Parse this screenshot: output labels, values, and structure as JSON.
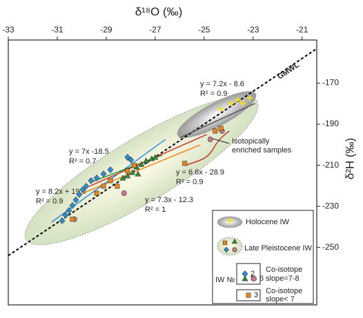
{
  "chart_data": {
    "type": "scatter",
    "x_label": "δ¹⁸O (‰)",
    "y_label": "δ²H (‰)",
    "xlim": [
      -33,
      -20.4
    ],
    "ylim": [
      -278,
      -149
    ],
    "xticks": [
      -33,
      -31,
      -29,
      -27,
      -25,
      -23,
      -21
    ],
    "yticks": [
      -170,
      -190,
      -210,
      -230,
      -250
    ],
    "series": [
      {
        "name": "2",
        "color": "#2e8fd6",
        "marker": "diamond",
        "x": [
          -30.8,
          -30.66,
          -30.52,
          -30.38,
          -30.24,
          -30.1,
          -29.96,
          -29.82,
          -29.62,
          -29.39,
          -29.11,
          -28.83,
          -28.13,
          -27.99
        ],
        "values": [
          -237.0,
          -234.3,
          -232.0,
          -229.6,
          -226.9,
          -224.2,
          -221.9,
          -220.2,
          -217.5,
          -216.2,
          -214.2,
          -212.2,
          -206.1,
          -207.4
        ]
      },
      {
        "name": "5",
        "color": "#2f8f3a",
        "marker": "triangle",
        "x": [
          -28.32,
          -28.13,
          -27.93,
          -27.76,
          -27.56,
          -27.37,
          -27.14,
          -27.0,
          -27.7
        ],
        "values": [
          -216.2,
          -215.2,
          -213.5,
          -210.8,
          -209.5,
          -207.8,
          -206.8,
          -206.1,
          -214.2
        ]
      },
      {
        "name": "6",
        "color": "#c97a8a",
        "marker": "circle",
        "x": [
          -30.3,
          -28.27,
          -24.75,
          -24.27
        ],
        "values": [
          -236.3,
          -223.6,
          -197.4,
          -193.3
        ]
      },
      {
        "name": "3",
        "color": "#e8861a",
        "marker": "square",
        "x": [
          -30.38,
          -29.39,
          -29.11,
          -28.83,
          -28.55,
          -28.13,
          -27.85,
          -25.79,
          -24.55,
          -24.32
        ],
        "values": [
          -236.3,
          -223.6,
          -220.2,
          -217.5,
          -220.2,
          -212.8,
          -210.1,
          -209.1,
          -193.3,
          -192.0
        ]
      },
      {
        "name": "Holocene IW",
        "color": "#f2e21a",
        "marker": "cross",
        "x": [
          -24.32,
          -23.9,
          -23.62,
          -23.42,
          -23.14
        ],
        "values": [
          -182.6,
          -179.9,
          -178.2,
          -179.9,
          -177.2
        ]
      }
    ],
    "reference_line": {
      "label": "GMWL",
      "x": [
        -33,
        -20.4
      ],
      "y": [
        -254,
        -153.2
      ]
    },
    "fit_lines": [
      {
        "equation": "y = 7.2x - 8.6",
        "r2": "R² = 0.9",
        "color": "#555555",
        "x": [
          -26.01,
          -22.92
        ],
        "y": [
          -196.7,
          -179.9
        ]
      },
      {
        "equation": "y = 8.2x + 19.8",
        "r2": "R² = 0.9",
        "color": "#2e8fd6",
        "x": [
          -31.23,
          -26.58
        ],
        "y": [
          -237.7,
          -197.4
        ]
      },
      {
        "equation": "y = 7x -18.5",
        "r2": "R² = 0.7",
        "color": "#2f8f3a",
        "x": [
          -29.68,
          -26.72
        ],
        "y": [
          -218.5,
          -205.1
        ]
      },
      {
        "equation": "y = 7.3x - 12.3",
        "r2": "R² = 1",
        "color": "#e8861a",
        "x": [
          -29.96,
          -25.17
        ],
        "y": [
          -223.6,
          -200.1
        ]
      },
      {
        "equation": "y = 6.6x - 28.9",
        "r2": "R² = 0.9",
        "color": "#c0392b",
        "x": [
          -29.68,
          -24.89
        ],
        "y": [
          -220.2,
          -195.0
        ]
      }
    ],
    "annotation": [
      "Isotopically",
      "enriched samples"
    ],
    "legend": {
      "pleistocene": "Late Pleistocene IW",
      "iw_label": "IW №",
      "group1": [
        "Co-isotope",
        "slope=7-8"
      ],
      "group2": [
        "Co-isotope",
        "slope< 7"
      ]
    }
  }
}
